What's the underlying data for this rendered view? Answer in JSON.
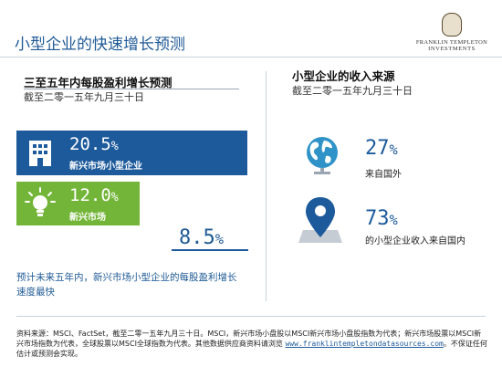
{
  "header": {
    "title": "小型企业的快速增长预测",
    "logo_line1": "FRANKLIN TEMPLETON",
    "logo_line2": "INVESTMENTS"
  },
  "left_panel": {
    "heading": "三至五年内每股盈利增长预测",
    "subheading": "截至二零一五年九月三十日",
    "bars": [
      {
        "value": "20.5",
        "unit": "%",
        "label": "新兴市场小型企业",
        "icon": "building-icon",
        "color": "#1d5a9b",
        "fill_percent": 20.5
      },
      {
        "value": "12.0",
        "unit": "%",
        "label": "新兴市场",
        "icon": "lightbulb-icon",
        "color": "#73b538",
        "fill_percent": 12.0
      },
      {
        "value": "8.5",
        "unit": "%",
        "label": "",
        "icon": "",
        "color": "#1d5a9b",
        "fill_percent": 8.5
      }
    ],
    "note": "预计未来五年内，新兴市场小型企业的每股盈利增长速度最快"
  },
  "right_panel": {
    "heading": "小型企业的收入来源",
    "subheading": "截至二零一五年九月三十日",
    "stats": [
      {
        "value": "27",
        "unit": "%",
        "label": "来自国外",
        "icon": "globe-icon"
      },
      {
        "value": "73",
        "unit": "%",
        "label": "的小型企业收入来自国内",
        "icon": "map-pin-icon"
      }
    ]
  },
  "footer": {
    "text": "资料来源：MSCI、FactSet，截至二零一五年九月三十日。MSCI，新兴市场小盘股以MSCI新兴市场小盘股指数为代表；新兴市场股票以MSCI新兴市场指数为代表，全球股票以MSCI全球指数为代表。其他数据供应商资料请浏览",
    "link": "www.franklintempletondatasources.com",
    "suffix": "。不保证任何估计或预测会实现。"
  }
}
